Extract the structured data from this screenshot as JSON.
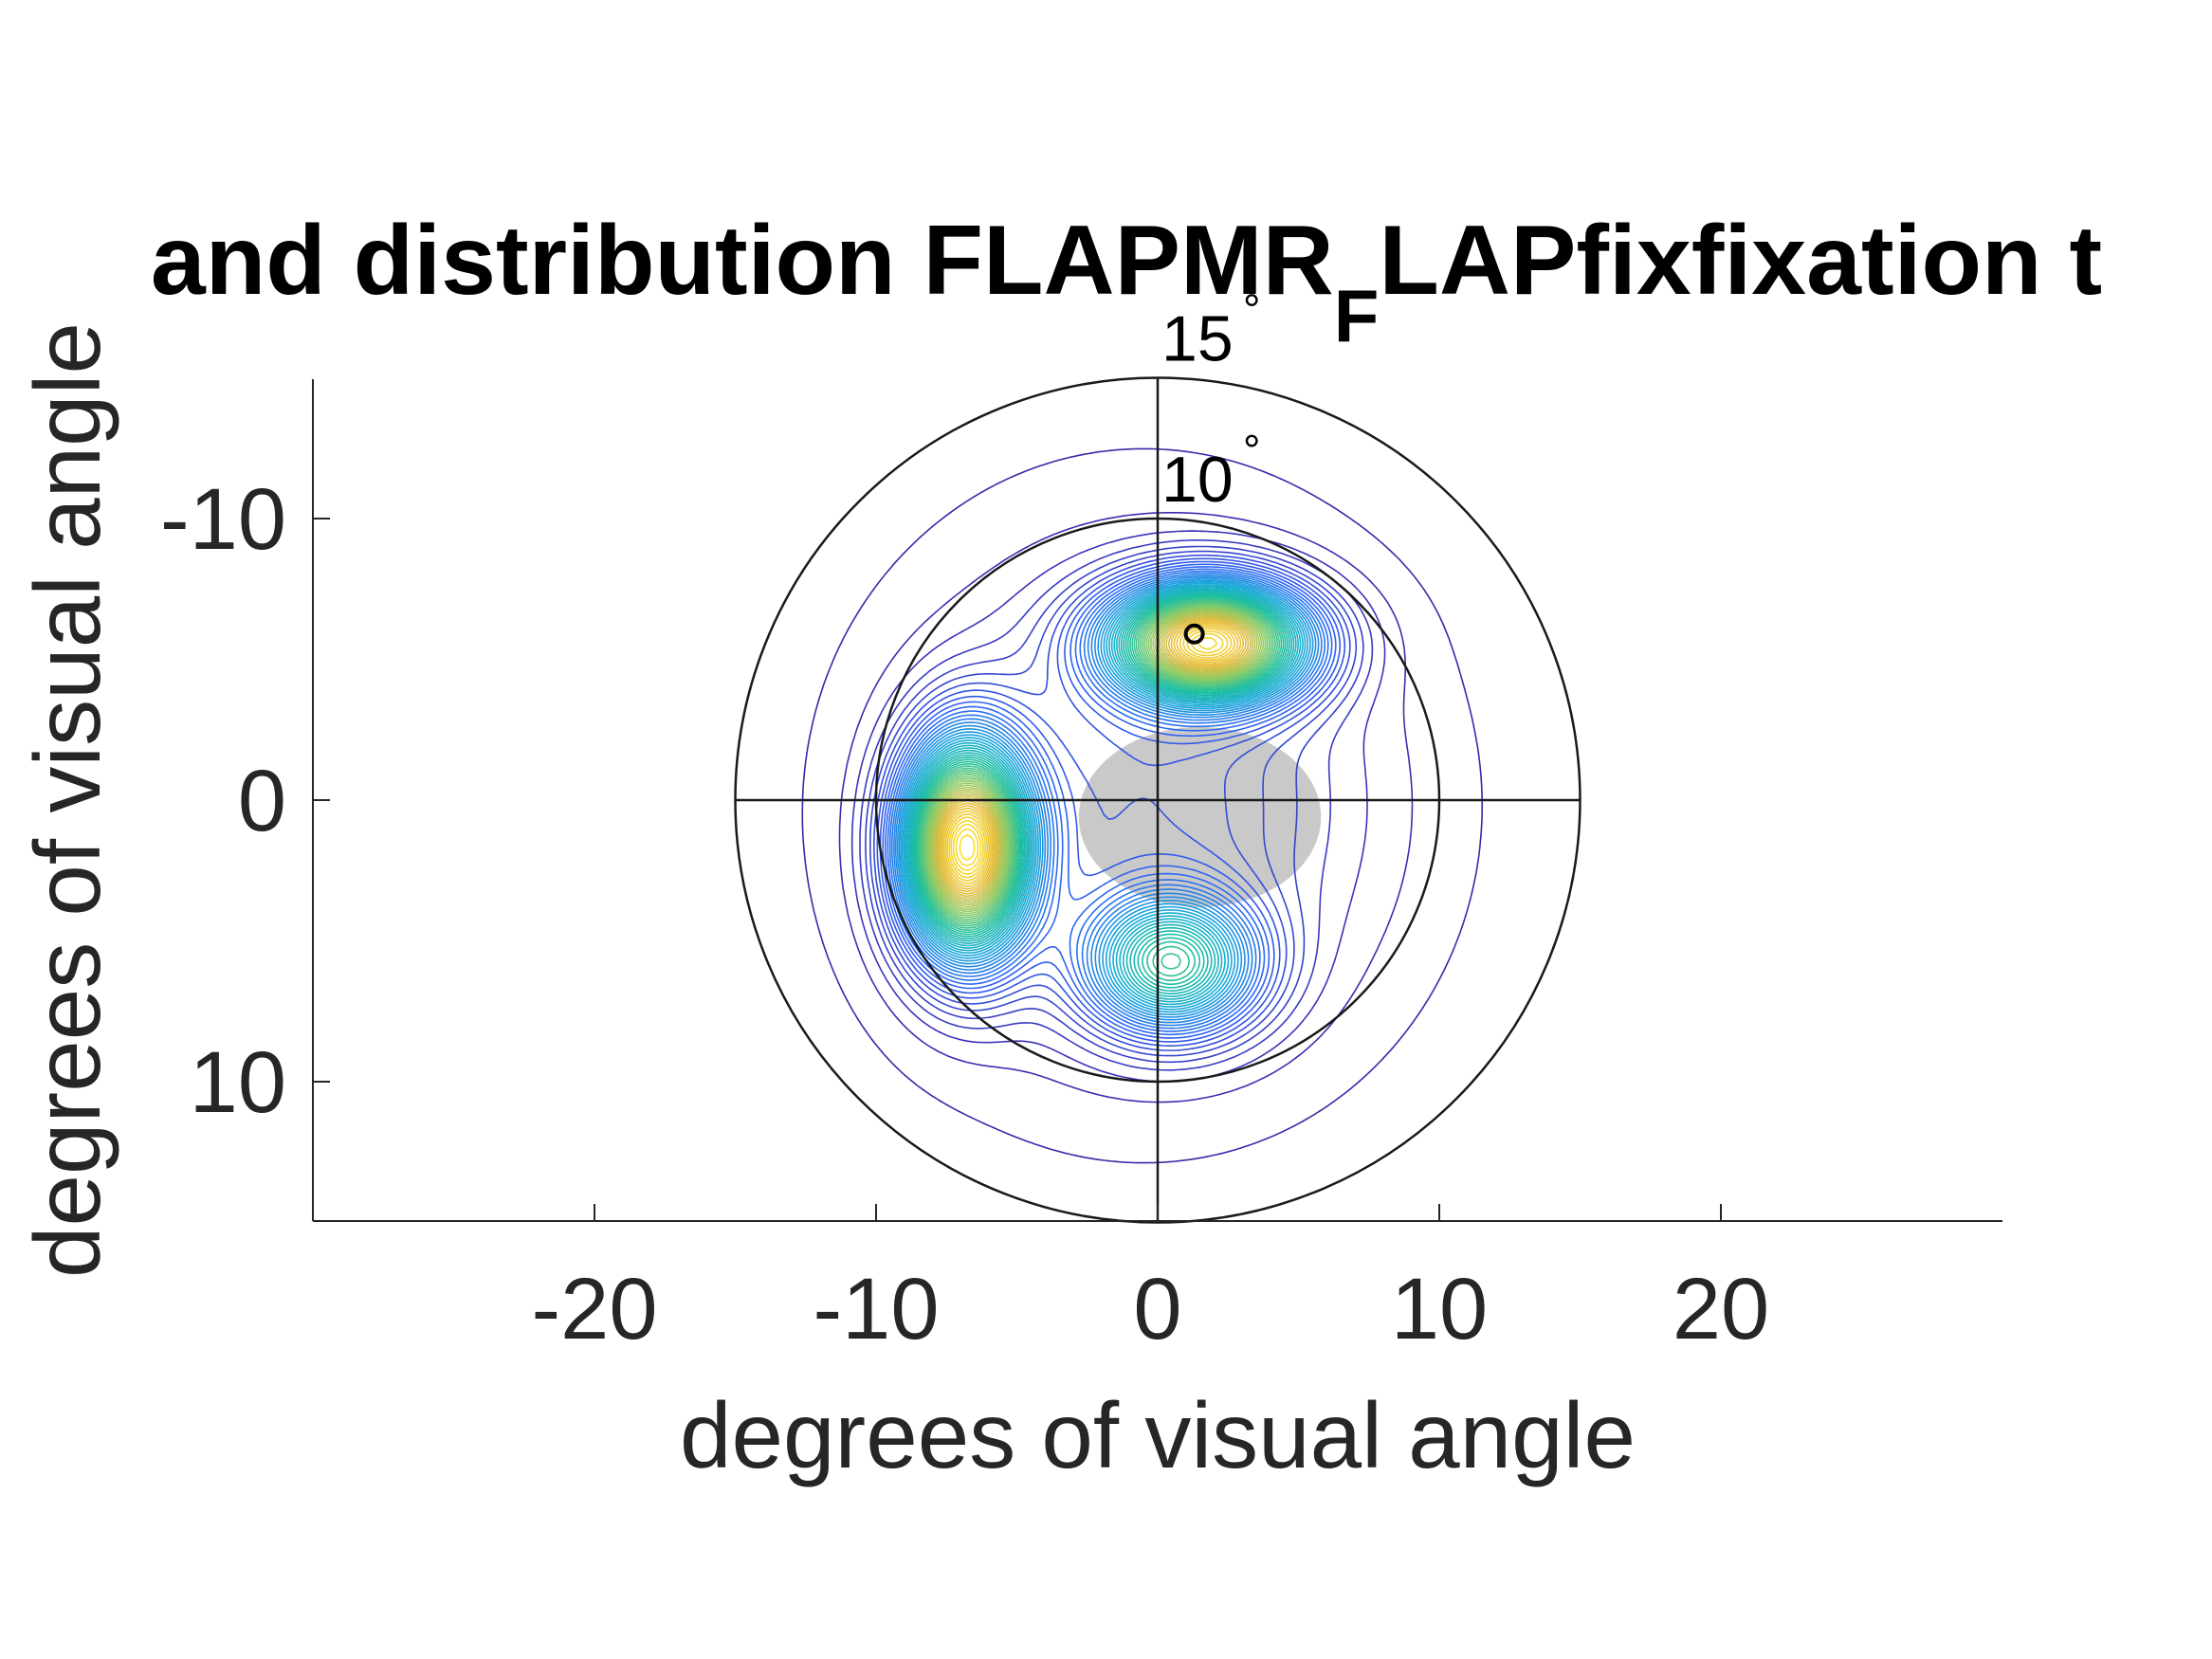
{
  "chart_data": {
    "type": "contour",
    "title_main": "and distribution FLAPMR",
    "title_subscript": "F",
    "title_rest": "LAPfixfixation t",
    "xlabel": "degrees of visual angle",
    "ylabel": "degrees of visual angle",
    "xlim": [
      -30,
      30
    ],
    "ylim": [
      -15,
      15
    ],
    "y_reversed": true,
    "xticks": [
      -20,
      -10,
      0,
      10,
      20
    ],
    "xtick_labels": [
      "-20",
      "-10",
      "0",
      "10",
      "20"
    ],
    "yticks": [
      -10,
      0,
      10
    ],
    "ytick_labels": [
      "-10",
      "0",
      "10"
    ],
    "polar_rings": [
      {
        "radius": 10,
        "label": "10°",
        "label_num": "10",
        "label_unit": "°"
      },
      {
        "radius": 15,
        "label": "15°",
        "label_num": "15",
        "label_unit": "°"
      }
    ],
    "density_peaks": [
      {
        "x": -6.8,
        "y": 1.7,
        "sx": 1.5,
        "sy": 2.5,
        "amp": 1.0
      },
      {
        "x": 1.8,
        "y": -5.6,
        "sx": 2.3,
        "sy": 1.4,
        "amp": 0.95
      },
      {
        "x": 0.5,
        "y": 5.8,
        "sx": 2.0,
        "sy": 1.6,
        "amp": 0.5
      },
      {
        "x": -0.5,
        "y": 0.2,
        "sx": 5.5,
        "sy": 5.8,
        "amp": 0.14
      }
    ],
    "fixation_point": {
      "x": 1.3,
      "y": -5.9
    },
    "scotoma": {
      "x": 1.5,
      "y": 0.6,
      "rx": 4.3,
      "ry": 3.2
    },
    "colormap": [
      "#3e26a8",
      "#2e64f4",
      "#17a8d8",
      "#1cbf9e",
      "#88cb66",
      "#e6ba3a",
      "#f9de27"
    ],
    "grid": false,
    "legend": "none"
  }
}
